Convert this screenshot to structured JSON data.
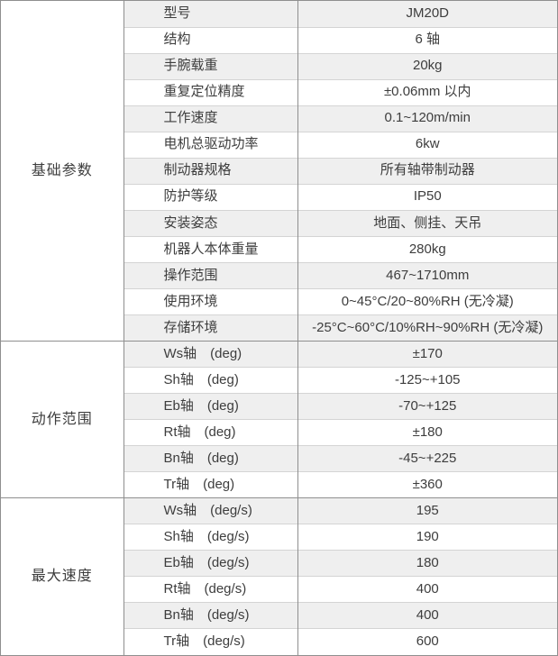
{
  "spec_table": {
    "colors": {
      "stripe_row_bg": "#efefef",
      "major_border": "#8f8f8f",
      "minor_border": "#d4d4d4",
      "text": "#3d3d3d"
    },
    "sections": [
      {
        "category": "基础参数",
        "rows": [
          {
            "param": "型号",
            "value": "JM20D"
          },
          {
            "param": "结构",
            "value": "6 轴"
          },
          {
            "param": "手腕载重",
            "value": "20kg"
          },
          {
            "param": "重复定位精度",
            "value": "±0.06mm 以内"
          },
          {
            "param": "工作速度",
            "value": "0.1~120m/min"
          },
          {
            "param": "电机总驱动功率",
            "value": "6kw"
          },
          {
            "param": "制动器规格",
            "value": "所有轴带制动器"
          },
          {
            "param": "防护等级",
            "value": "IP50"
          },
          {
            "param": "安装姿态",
            "value": "地面、侧挂、天吊"
          },
          {
            "param": "机器人本体重量",
            "value": "280kg"
          },
          {
            "param": "操作范围",
            "value": "467~1710mm"
          },
          {
            "param": "使用环境",
            "value": "0~45°C/20~80%RH (无冷凝)"
          },
          {
            "param": "存储环境",
            "value": "-25°C~60°C/10%RH~90%RH (无冷凝)"
          }
        ]
      },
      {
        "category": "动作范围",
        "rows": [
          {
            "param": "Ws轴　(deg)",
            "value": "±170"
          },
          {
            "param": "Sh轴　(deg)",
            "value": "-125~+105"
          },
          {
            "param": "Eb轴　(deg)",
            "value": "-70~+125"
          },
          {
            "param": "Rt轴　(deg)",
            "value": "±180"
          },
          {
            "param": "Bn轴　(deg)",
            "value": "-45~+225"
          },
          {
            "param": "Tr轴　(deg)",
            "value": "±360"
          }
        ]
      },
      {
        "category": "最大速度",
        "rows": [
          {
            "param": "Ws轴　(deg/s)",
            "value": "195"
          },
          {
            "param": "Sh轴　(deg/s)",
            "value": "190"
          },
          {
            "param": "Eb轴　(deg/s)",
            "value": "180"
          },
          {
            "param": "Rt轴　(deg/s)",
            "value": "400"
          },
          {
            "param": "Bn轴　(deg/s)",
            "value": "400"
          },
          {
            "param": "Tr轴　(deg/s)",
            "value": "600"
          }
        ]
      }
    ]
  }
}
